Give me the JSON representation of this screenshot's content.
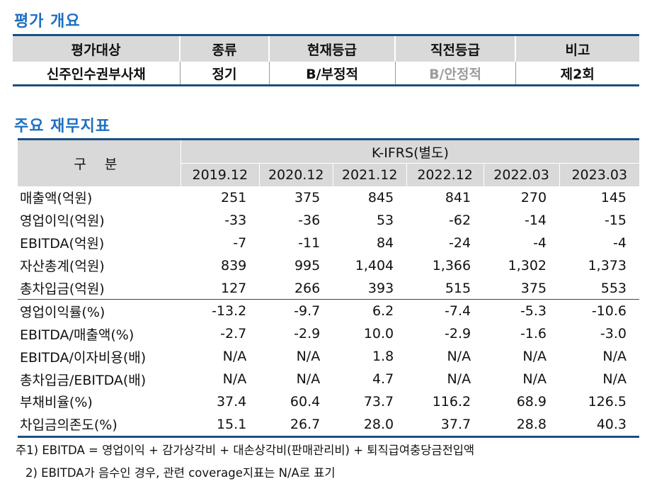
{
  "overview": {
    "title": "평가 개요",
    "headers": [
      "평가대상",
      "종류",
      "현재등급",
      "직전등급",
      "비고"
    ],
    "row": [
      "신주인수권부사채",
      "정기",
      "B/부정적",
      "B/안정적",
      "제2회"
    ]
  },
  "financial": {
    "title": "주요 재무지표",
    "corner": "구 분",
    "group_header": "K-IFRS(별도)",
    "periods": [
      "2019.12",
      "2020.12",
      "2021.12",
      "2022.12",
      "2022.03",
      "2023.03"
    ],
    "rows": [
      {
        "label": "매출액(억원)",
        "values": [
          "251",
          "375",
          "845",
          "841",
          "270",
          "145"
        ]
      },
      {
        "label": "영업이익(억원)",
        "values": [
          "-33",
          "-36",
          "53",
          "-62",
          "-14",
          "-15"
        ]
      },
      {
        "label": "EBITDA(억원)",
        "values": [
          "-7",
          "-11",
          "84",
          "-24",
          "-4",
          "-4"
        ]
      },
      {
        "label": "자산총계(억원)",
        "values": [
          "839",
          "995",
          "1,404",
          "1,366",
          "1,302",
          "1,373"
        ]
      },
      {
        "label": "총차입금(억원)",
        "values": [
          "127",
          "266",
          "393",
          "515",
          "375",
          "553"
        ]
      },
      {
        "label": "영업이익률(%)",
        "values": [
          "-13.2",
          "-9.7",
          "6.2",
          "-7.4",
          "-5.3",
          "-10.6"
        ]
      },
      {
        "label": "EBITDA/매출액(%)",
        "values": [
          "-2.7",
          "-2.9",
          "10.0",
          "-2.9",
          "-1.6",
          "-3.0"
        ]
      },
      {
        "label": "EBITDA/이자비용(배)",
        "values": [
          "N/A",
          "N/A",
          "1.8",
          "N/A",
          "N/A",
          "N/A"
        ]
      },
      {
        "label": "총차입금/EBITDA(배)",
        "values": [
          "N/A",
          "N/A",
          "4.7",
          "N/A",
          "N/A",
          "N/A"
        ]
      },
      {
        "label": "부채비율(%)",
        "values": [
          "37.4",
          "60.4",
          "73.7",
          "116.2",
          "68.9",
          "126.5"
        ]
      },
      {
        "label": "차입금의존도(%)",
        "values": [
          "15.1",
          "26.7",
          "28.0",
          "37.7",
          "28.8",
          "40.3"
        ]
      }
    ]
  },
  "notes": [
    "주1) EBITDA = 영업이익 + 감가상각비 + 대손상각비(판매관리비) + 퇴직급여충당금전입액",
    "2) EBITDA가 음수인 경우, 관련 coverage지표는 N/A로 표기"
  ]
}
